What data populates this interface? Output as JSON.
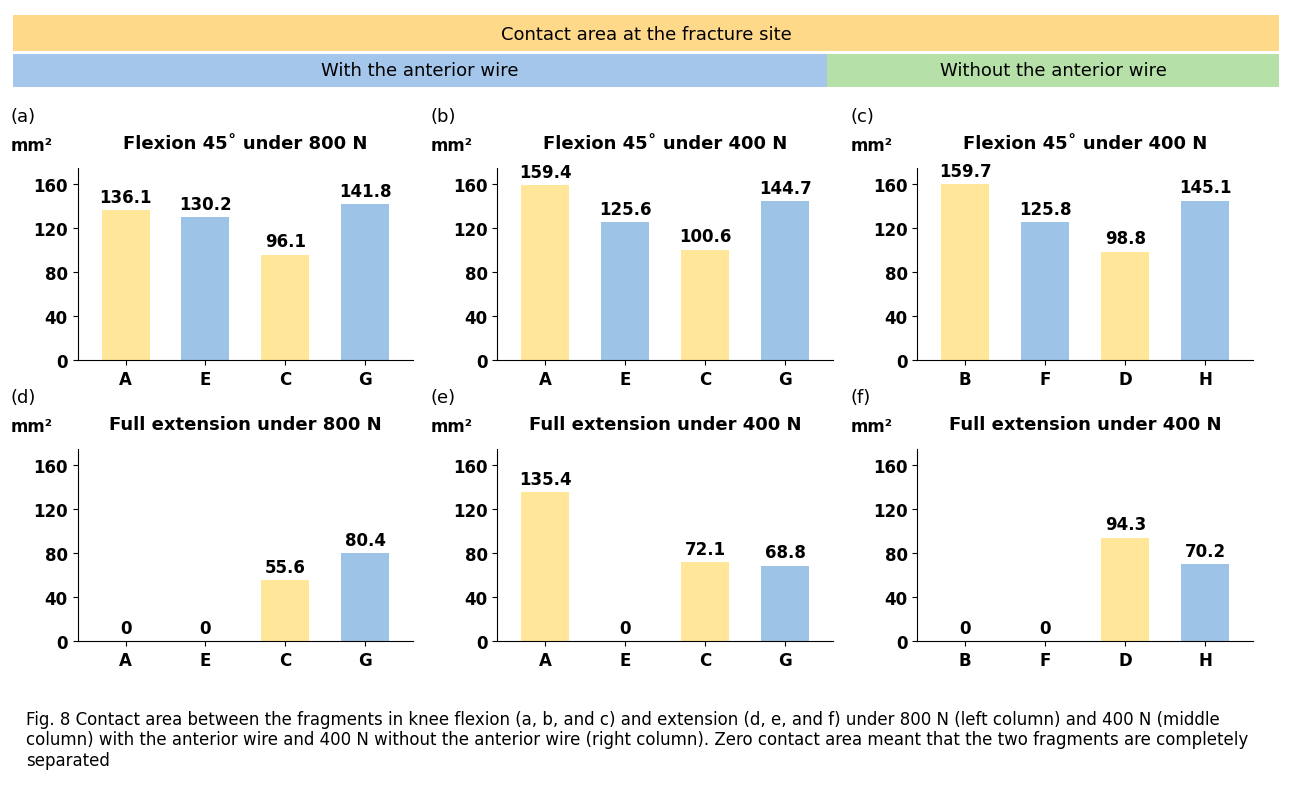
{
  "header": {
    "title": "Contact area at the fracture site",
    "groups": [
      {
        "text": "With the anterior wire",
        "color": "#a4c6ea"
      },
      {
        "text": "Without the anterior wire",
        "color": "#b5e0a8"
      }
    ],
    "color": "#ffd98a"
  },
  "chart_data": [
    {
      "type": "bar",
      "panel": "(a)",
      "unit": "mm²",
      "title": "Flexion 45˚ under 800 N",
      "categories": [
        "A",
        "E",
        "C",
        "G"
      ],
      "values": [
        136.1,
        130.2,
        96.1,
        141.8
      ],
      "colors": [
        "#ffe699",
        "#9dc3e6",
        "#ffe699",
        "#9dc3e6"
      ],
      "ylim": [
        0,
        175
      ],
      "yticks": [
        0,
        40,
        80,
        120,
        160
      ],
      "data_labels": true,
      "grid": false
    },
    {
      "type": "bar",
      "panel": "(b)",
      "unit": "mm²",
      "title": "Flexion 45˚ under 400 N",
      "categories": [
        "A",
        "E",
        "C",
        "G"
      ],
      "values": [
        159.4,
        125.6,
        100.6,
        144.7
      ],
      "colors": [
        "#ffe699",
        "#9dc3e6",
        "#ffe699",
        "#9dc3e6"
      ],
      "ylim": [
        0,
        175
      ],
      "yticks": [
        0,
        40,
        80,
        120,
        160
      ],
      "data_labels": true,
      "grid": false
    },
    {
      "type": "bar",
      "panel": "(c)",
      "unit": "mm²",
      "title": "Flexion 45˚ under 400 N",
      "categories": [
        "B",
        "F",
        "D",
        "H"
      ],
      "values": [
        159.7,
        125.8,
        98.8,
        145.1
      ],
      "colors": [
        "#ffe699",
        "#9dc3e6",
        "#ffe699",
        "#9dc3e6"
      ],
      "ylim": [
        0,
        175
      ],
      "yticks": [
        0,
        40,
        80,
        120,
        160
      ],
      "data_labels": true,
      "grid": false
    },
    {
      "type": "bar",
      "panel": "(d)",
      "unit": "mm²",
      "title": "Full extension under 800 N",
      "categories": [
        "A",
        "E",
        "C",
        "G"
      ],
      "values": [
        0,
        0,
        55.6,
        80.4
      ],
      "colors": [
        "#ffe699",
        "#9dc3e6",
        "#ffe699",
        "#9dc3e6"
      ],
      "ylim": [
        0,
        175
      ],
      "yticks": [
        0,
        40,
        80,
        120,
        160
      ],
      "data_labels": true,
      "grid": false
    },
    {
      "type": "bar",
      "panel": "(e)",
      "unit": "mm²",
      "title": "Full extension under 400 N",
      "categories": [
        "A",
        "E",
        "C",
        "G"
      ],
      "values": [
        135.4,
        0,
        72.1,
        68.8
      ],
      "colors": [
        "#ffe699",
        "#9dc3e6",
        "#ffe699",
        "#9dc3e6"
      ],
      "ylim": [
        0,
        175
      ],
      "yticks": [
        0,
        40,
        80,
        120,
        160
      ],
      "data_labels": true,
      "grid": false
    },
    {
      "type": "bar",
      "panel": "(f)",
      "unit": "mm²",
      "title": "Full extension under 400 N",
      "categories": [
        "B",
        "F",
        "D",
        "H"
      ],
      "values": [
        0,
        0,
        94.3,
        70.2
      ],
      "colors": [
        "#ffe699",
        "#9dc3e6",
        "#ffe699",
        "#9dc3e6"
      ],
      "ylim": [
        0,
        175
      ],
      "yticks": [
        0,
        40,
        80,
        120,
        160
      ],
      "data_labels": true,
      "grid": false
    }
  ],
  "caption": "Fig. 8 Contact area between the fragments in knee flexion (a, b, and c) and extension (d, e, and f) under 800 N (left column) and 400 N (middle column) with the anterior wire and 400 N without the anterior wire (right column). Zero contact area meant that the two fragments are completely separated"
}
